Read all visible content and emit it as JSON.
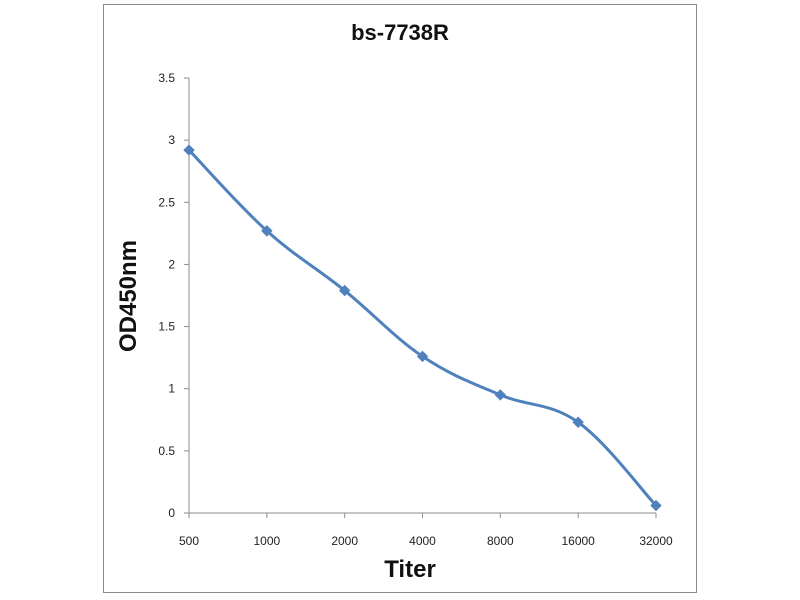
{
  "chart_data": {
    "type": "line",
    "title": "bs-7738R",
    "xlabel": "Titer",
    "ylabel": "OD450nm",
    "categories": [
      "500",
      "1000",
      "2000",
      "4000",
      "8000",
      "16000",
      "32000"
    ],
    "y_ticks": [
      "0",
      "0.5",
      "1",
      "1.5",
      "2",
      "2.5",
      "3",
      "3.5"
    ],
    "ylim": [
      0,
      3.5
    ],
    "grid": false,
    "legend": "none",
    "smooth": true,
    "series": [
      {
        "values": [
          2.92,
          2.27,
          1.79,
          1.26,
          0.95,
          0.73,
          0.06
        ],
        "color": "#4f81bd",
        "marker": "diamond"
      }
    ]
  }
}
